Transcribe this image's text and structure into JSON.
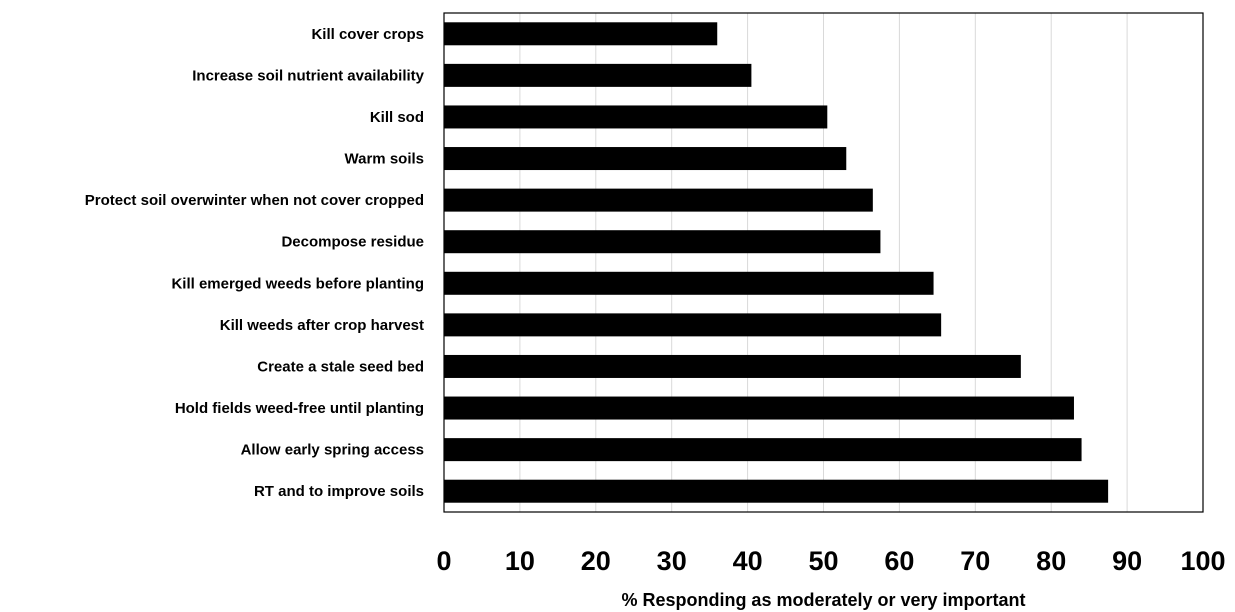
{
  "chart_data": {
    "type": "bar",
    "orientation": "horizontal",
    "categories": [
      "Kill cover crops",
      "Increase soil nutrient availability",
      "Kill sod",
      "Warm soils",
      "Protect soil overwinter when not cover cropped",
      "Decompose residue",
      "Kill emerged weeds before planting",
      "Kill weeds after crop harvest",
      "Create a stale seed bed",
      "Hold fields weed-free until planting",
      "Allow early spring access",
      "RT and to improve soils"
    ],
    "values": [
      36,
      40.5,
      50.5,
      53,
      56.5,
      57.5,
      64.5,
      65.5,
      76,
      83,
      84,
      87.5
    ],
    "title": "",
    "xlabel": "% Responding as moderately or very important",
    "ylabel": "",
    "xlim": [
      0,
      100
    ],
    "xticks": [
      "0",
      "10",
      "20",
      "30",
      "40",
      "50",
      "60",
      "70",
      "80",
      "90",
      "100"
    ],
    "grid": "vertical",
    "legend": "none",
    "bar_color": "#000000",
    "grid_color": "#d9d9d9",
    "frame_color": "#000000"
  }
}
